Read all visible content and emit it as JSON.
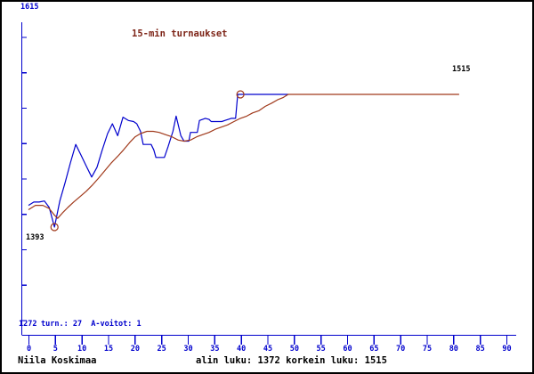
{
  "title": "15-min turnaukset",
  "axis": {
    "y_max_label": "1615",
    "y_min_label": "1272",
    "x_tick_labels": [
      "0",
      "5",
      "10",
      "15",
      "20",
      "25",
      "30",
      "35",
      "40",
      "45",
      "50",
      "55",
      "60",
      "65",
      "70",
      "75",
      "80",
      "85",
      "90"
    ]
  },
  "annotations": {
    "low_point_label": "1393",
    "peak_value_label": "1515"
  },
  "status_line": "turn.: 27  A-voitot: 1",
  "footer": {
    "player": "Niila Koskimaa",
    "summary": "alin luku: 1372 korkein luku: 1515"
  },
  "colors": {
    "blue": "#0000cd",
    "brown": "#a0391b",
    "maroon": "#7d2417",
    "black": "#000000"
  },
  "chart_data": {
    "type": "line",
    "title": "15-min turnaukset",
    "xlabel": "",
    "ylabel": "",
    "xlim": [
      0,
      90
    ],
    "x_ticks_every": 5,
    "ylim": [
      1272,
      1615
    ],
    "grid": false,
    "legend": "none",
    "min_value": 1372,
    "max_value": 1515,
    "tournaments": 27,
    "a_wins": 1,
    "series": [
      {
        "name": "blue-rating-line",
        "color_key": "blue",
        "points": [
          [
            0,
            1413
          ],
          [
            1,
            1416
          ],
          [
            2,
            1416
          ],
          [
            3,
            1417
          ],
          [
            3.9,
            1411
          ],
          [
            4.9,
            1393
          ],
          [
            5.9,
            1417
          ],
          [
            6.9,
            1434
          ],
          [
            7.9,
            1452
          ],
          [
            8.9,
            1469
          ],
          [
            9.9,
            1459
          ],
          [
            10.9,
            1449
          ],
          [
            11.9,
            1439
          ],
          [
            12.9,
            1448
          ],
          [
            13.9,
            1464
          ],
          [
            14.9,
            1479
          ],
          [
            15.8,
            1488
          ],
          [
            16.8,
            1477
          ],
          [
            17.8,
            1494
          ],
          [
            18.8,
            1491
          ],
          [
            19.8,
            1490
          ],
          [
            20.4,
            1488
          ],
          [
            21.1,
            1481
          ],
          [
            21.6,
            1469
          ],
          [
            23.1,
            1469
          ],
          [
            23.6,
            1464
          ],
          [
            24,
            1457
          ],
          [
            25.6,
            1457
          ],
          [
            26.3,
            1467
          ],
          [
            27.2,
            1481
          ],
          [
            27.8,
            1495
          ],
          [
            28.7,
            1477
          ],
          [
            29.3,
            1472
          ],
          [
            30.2,
            1472
          ],
          [
            30.5,
            1480
          ],
          [
            31.8,
            1480
          ],
          [
            32.2,
            1491
          ],
          [
            33.3,
            1493
          ],
          [
            34,
            1492
          ],
          [
            34.4,
            1490
          ],
          [
            36.4,
            1490
          ],
          [
            38.2,
            1493
          ],
          [
            39,
            1493
          ],
          [
            39.4,
            1515
          ],
          [
            48.9,
            1515
          ]
        ]
      },
      {
        "name": "brown-average-line",
        "color_key": "brown",
        "points": [
          [
            0,
            1409
          ],
          [
            1.3,
            1413
          ],
          [
            2.7,
            1413
          ],
          [
            3.9,
            1410
          ],
          [
            4.9,
            1404
          ],
          [
            5.5,
            1401
          ],
          [
            6.4,
            1406
          ],
          [
            7.4,
            1411
          ],
          [
            8.5,
            1416
          ],
          [
            9.7,
            1421
          ],
          [
            10.9,
            1426
          ],
          [
            12.1,
            1432
          ],
          [
            13.2,
            1438
          ],
          [
            14.4,
            1445
          ],
          [
            15.6,
            1452
          ],
          [
            16.8,
            1458
          ],
          [
            17.9,
            1464
          ],
          [
            19.1,
            1471
          ],
          [
            20.1,
            1476
          ],
          [
            21.1,
            1479
          ],
          [
            22.3,
            1481
          ],
          [
            23.5,
            1481
          ],
          [
            24.6,
            1480
          ],
          [
            25.8,
            1478
          ],
          [
            27,
            1476
          ],
          [
            28.2,
            1473
          ],
          [
            29.3,
            1472
          ],
          [
            30.5,
            1473
          ],
          [
            31.7,
            1476
          ],
          [
            32.8,
            1478
          ],
          [
            34,
            1480
          ],
          [
            35.2,
            1483
          ],
          [
            36.4,
            1485
          ],
          [
            37.5,
            1487
          ],
          [
            38.7,
            1490
          ],
          [
            39.9,
            1493
          ],
          [
            41.1,
            1495
          ],
          [
            42.2,
            1498
          ],
          [
            43.4,
            1500
          ],
          [
            44.6,
            1504
          ],
          [
            45.8,
            1507
          ],
          [
            46.9,
            1510
          ],
          [
            47.9,
            1512
          ],
          [
            48.9,
            1515
          ],
          [
            81.1,
            1515
          ]
        ]
      }
    ],
    "markers": [
      {
        "name": "min-marker",
        "x": 4.9,
        "y": 1393,
        "label": "1393"
      },
      {
        "name": "max-marker",
        "x": 39.9,
        "y": 1515,
        "label": "1515"
      }
    ]
  }
}
